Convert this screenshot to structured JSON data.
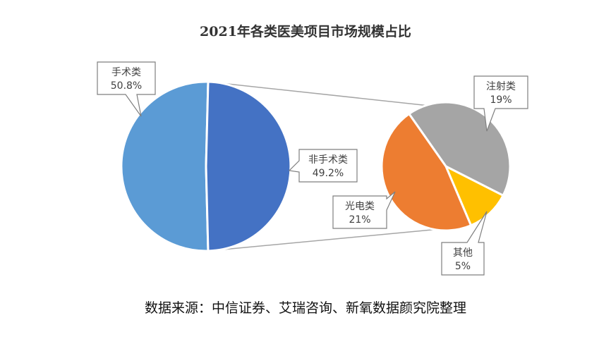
{
  "chart_data": {
    "type": "pie",
    "variant": "bar-of-pie (pie of pie)",
    "title": "2021年各类医美项目市场规模占比",
    "main_pie": {
      "slices": [
        {
          "name": "手术类",
          "value": 50.8,
          "label": "50.8%",
          "color": "#5b9bd5"
        },
        {
          "name": "非手术类",
          "value": 49.2,
          "label": "49.2%",
          "color": "#4472c4"
        }
      ]
    },
    "secondary_pie": {
      "breakdown_of": "非手术类",
      "slices": [
        {
          "name": "注射类",
          "value": 19,
          "label": "19%",
          "color": "#a5a5a5"
        },
        {
          "name": "其他",
          "value": 5,
          "label": "5%",
          "color": "#ffc000"
        },
        {
          "name": "光电类",
          "value": 21,
          "label": "21%",
          "color": "#ed7d31"
        }
      ]
    },
    "legend": "none (callout data labels)"
  },
  "source": "数据来源：中信证券、艾瑞咨询、新氧数据颜究院整理"
}
